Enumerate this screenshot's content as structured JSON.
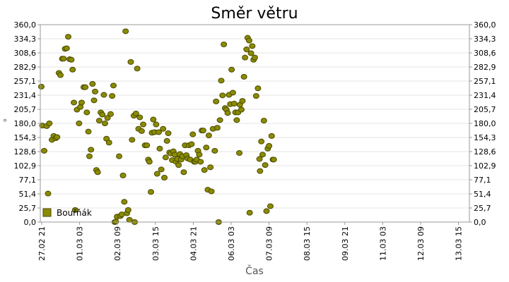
{
  "chart_data": {
    "type": "scatter",
    "title": "Směr větru",
    "xlabel": "Čas",
    "ylabel": "°",
    "ylim": [
      0,
      360
    ],
    "xlim": [
      0,
      16.6
    ],
    "y_ticks": [
      "0,0",
      "25,7",
      "51,4",
      "77,1",
      "102,9",
      "128,6",
      "154,3",
      "180,0",
      "205,7",
      "231,4",
      "257,1",
      "282,9",
      "308,6",
      "334,3",
      "360,0"
    ],
    "x_ticks": [
      "27.02 21",
      "01.03 03",
      "02.03 09",
      "03.03 15",
      "04.03 21",
      "06.03 03",
      "07.03 09",
      "08.03 15",
      "09.03 21",
      "11.03 03",
      "12.03 09",
      "13.03 15"
    ],
    "legend": {
      "label": "Bouřňák",
      "placement": "bottom-left"
    },
    "grid": true,
    "colors": {
      "marker_fill": "#8b8b00",
      "marker_stroke": "#4a4a00",
      "grid": "#e6e6e6",
      "axis": "#999999"
    },
    "series": [
      {
        "name": "Bouřňák",
        "points": [
          [
            0.04,
            247
          ],
          [
            0.08,
            176
          ],
          [
            0.15,
            130
          ],
          [
            0.25,
            175
          ],
          [
            0.3,
            52
          ],
          [
            0.35,
            180
          ],
          [
            0.45,
            150
          ],
          [
            0.52,
            157
          ],
          [
            0.6,
            153
          ],
          [
            0.65,
            155
          ],
          [
            0.72,
            272
          ],
          [
            0.78,
            268
          ],
          [
            0.85,
            298
          ],
          [
            0.9,
            298
          ],
          [
            0.96,
            316
          ],
          [
            1.02,
            317
          ],
          [
            1.08,
            338
          ],
          [
            1.14,
            297
          ],
          [
            1.2,
            296
          ],
          [
            1.25,
            278
          ],
          [
            1.3,
            218
          ],
          [
            1.35,
            22
          ],
          [
            1.42,
            205
          ],
          [
            1.5,
            180
          ],
          [
            1.55,
            210
          ],
          [
            1.6,
            218
          ],
          [
            1.68,
            246
          ],
          [
            1.74,
            246
          ],
          [
            1.8,
            200
          ],
          [
            1.86,
            165
          ],
          [
            1.9,
            120
          ],
          [
            1.96,
            132
          ],
          [
            2.02,
            252
          ],
          [
            2.08,
            222
          ],
          [
            2.12,
            238
          ],
          [
            2.17,
            95
          ],
          [
            2.22,
            91
          ],
          [
            2.28,
            185
          ],
          [
            2.34,
            200
          ],
          [
            2.4,
            196
          ],
          [
            2.46,
            232
          ],
          [
            2.5,
            180
          ],
          [
            2.56,
            152
          ],
          [
            2.6,
            190
          ],
          [
            2.66,
            145
          ],
          [
            2.72,
            197
          ],
          [
            2.78,
            230
          ],
          [
            2.83,
            249
          ],
          [
            2.88,
            0
          ],
          [
            2.92,
            1
          ],
          [
            2.97,
            10
          ],
          [
            3.05,
            120
          ],
          [
            3.1,
            11
          ],
          [
            3.15,
            14
          ],
          [
            3.2,
            85
          ],
          [
            3.25,
            37
          ],
          [
            3.3,
            348
          ],
          [
            3.35,
            16
          ],
          [
            3.4,
            22
          ],
          [
            3.45,
            4
          ],
          [
            3.5,
            292
          ],
          [
            3.55,
            150
          ],
          [
            3.62,
            194
          ],
          [
            3.65,
            0
          ],
          [
            3.7,
            198
          ],
          [
            3.75,
            280
          ],
          [
            3.8,
            170
          ],
          [
            3.85,
            191
          ],
          [
            3.92,
            166
          ],
          [
            3.98,
            178
          ],
          [
            4.05,
            140
          ],
          [
            4.12,
            140
          ],
          [
            4.18,
            114
          ],
          [
            4.22,
            110
          ],
          [
            4.28,
            55
          ],
          [
            4.32,
            163
          ],
          [
            4.37,
            187
          ],
          [
            4.42,
            164
          ],
          [
            4.48,
            178
          ],
          [
            4.52,
            88
          ],
          [
            4.58,
            164
          ],
          [
            4.62,
            134
          ],
          [
            4.68,
            96
          ],
          [
            4.75,
            170
          ],
          [
            4.8,
            81
          ],
          [
            4.85,
            118
          ],
          [
            4.9,
            148
          ],
          [
            4.95,
            162
          ],
          [
            5.0,
            127
          ],
          [
            5.05,
            125
          ],
          [
            5.1,
            113
          ],
          [
            5.15,
            129
          ],
          [
            5.2,
            123
          ],
          [
            5.25,
            110
          ],
          [
            5.3,
            115
          ],
          [
            5.35,
            104
          ],
          [
            5.4,
            124
          ],
          [
            5.45,
            114
          ],
          [
            5.5,
            120
          ],
          [
            5.55,
            91
          ],
          [
            5.6,
            140
          ],
          [
            5.65,
            122
          ],
          [
            5.7,
            116
          ],
          [
            5.75,
            140
          ],
          [
            5.8,
            114
          ],
          [
            5.85,
            142
          ],
          [
            5.9,
            160
          ],
          [
            5.95,
            110
          ],
          [
            6.0,
            110
          ],
          [
            6.05,
            114
          ],
          [
            6.1,
            130
          ],
          [
            6.15,
            123
          ],
          [
            6.2,
            110
          ],
          [
            6.25,
            167
          ],
          [
            6.3,
            167
          ],
          [
            6.35,
            95
          ],
          [
            6.42,
            136
          ],
          [
            6.48,
            59
          ],
          [
            6.52,
            158
          ],
          [
            6.58,
            100
          ],
          [
            6.62,
            56
          ],
          [
            6.68,
            170
          ],
          [
            6.75,
            130
          ],
          [
            6.8,
            220
          ],
          [
            6.85,
            172
          ],
          [
            6.9,
            0
          ],
          [
            6.95,
            186
          ],
          [
            7.0,
            258
          ],
          [
            7.05,
            231
          ],
          [
            7.1,
            324
          ],
          [
            7.15,
            208
          ],
          [
            7.2,
            205
          ],
          [
            7.25,
            199
          ],
          [
            7.3,
            232
          ],
          [
            7.35,
            215
          ],
          [
            7.4,
            278
          ],
          [
            7.45,
            236
          ],
          [
            7.5,
            216
          ],
          [
            7.55,
            200
          ],
          [
            7.6,
            186
          ],
          [
            7.65,
            200
          ],
          [
            7.7,
            126
          ],
          [
            7.72,
            214
          ],
          [
            7.78,
            205
          ],
          [
            7.82,
            221
          ],
          [
            7.88,
            265
          ],
          [
            7.92,
            300
          ],
          [
            7.98,
            315
          ],
          [
            8.02,
            336
          ],
          [
            8.08,
            331
          ],
          [
            8.1,
            17
          ],
          [
            8.15,
            308
          ],
          [
            8.2,
            321
          ],
          [
            8.25,
            296
          ],
          [
            8.3,
            300
          ],
          [
            8.35,
            230
          ],
          [
            8.42,
            244
          ],
          [
            8.48,
            115
          ],
          [
            8.5,
            93
          ],
          [
            8.55,
            147
          ],
          [
            8.6,
            123
          ],
          [
            8.65,
            185
          ],
          [
            8.7,
            104
          ],
          [
            8.75,
            20
          ],
          [
            8.8,
            134
          ],
          [
            8.85,
            139
          ],
          [
            8.9,
            29
          ],
          [
            8.95,
            157
          ],
          [
            9.0,
            114
          ],
          [
            9.03,
            114
          ]
        ]
      }
    ]
  }
}
